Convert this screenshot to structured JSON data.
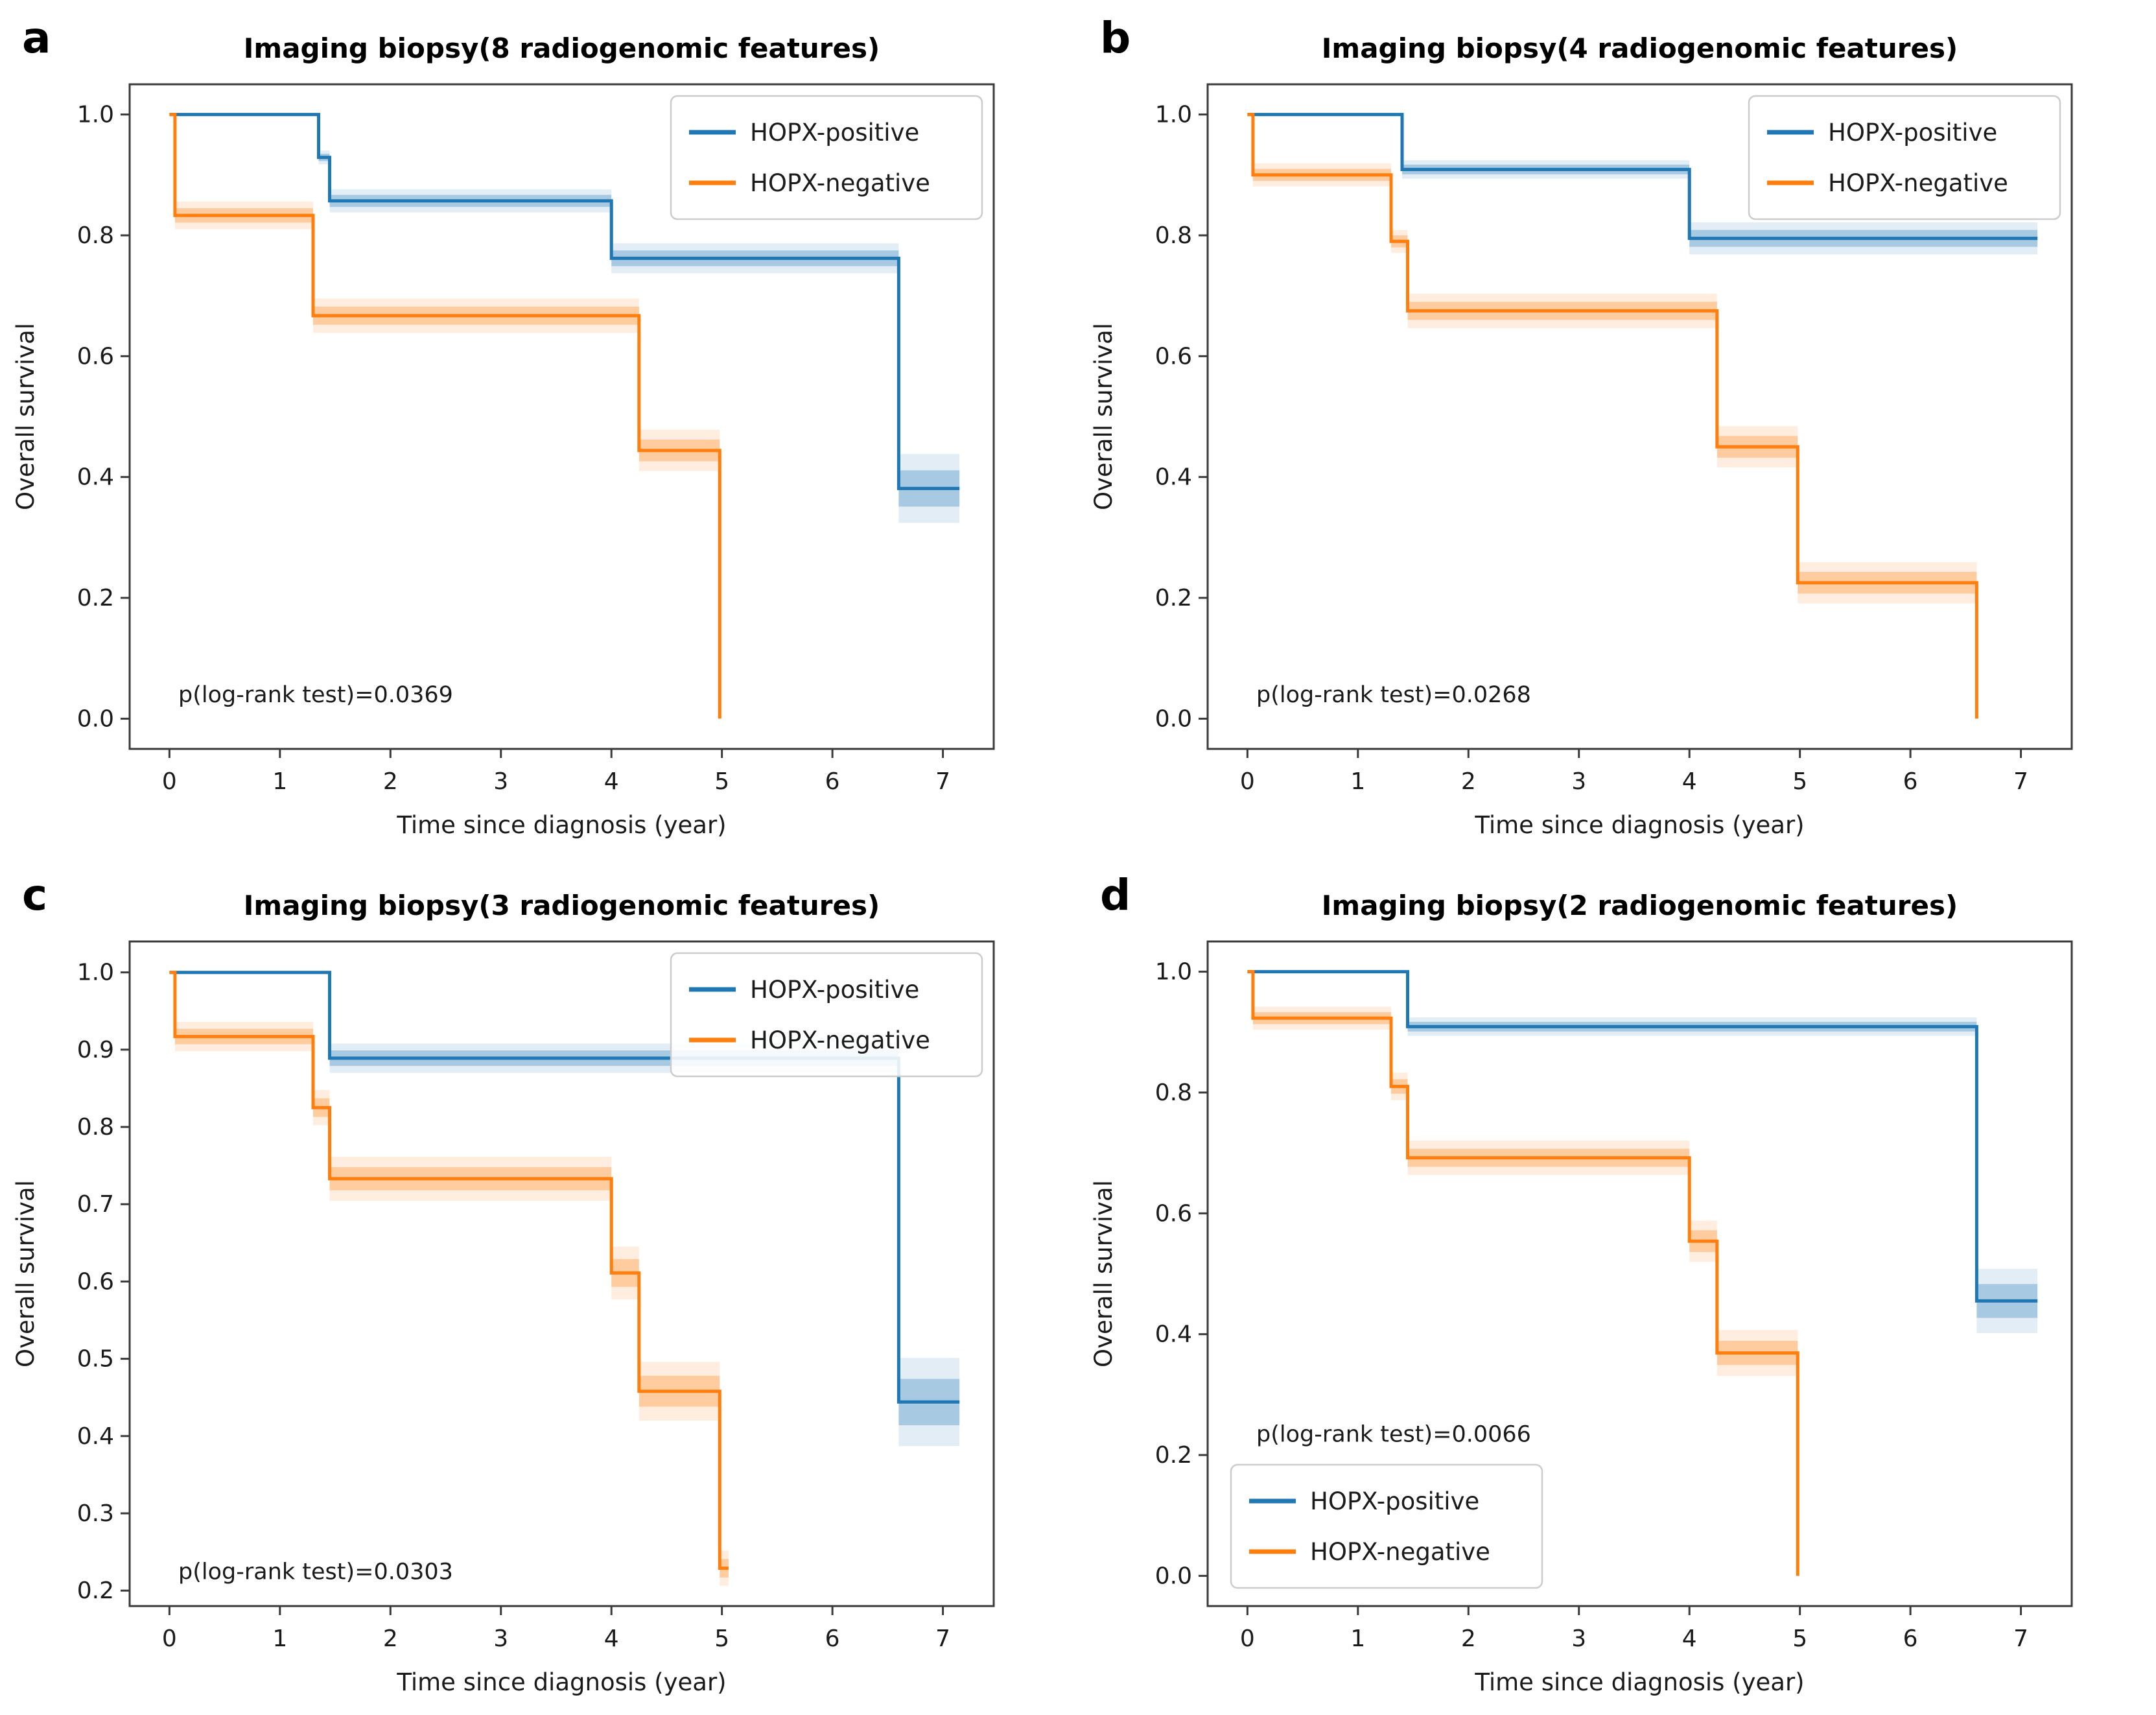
{
  "style": {
    "background": "#ffffff",
    "spine_color": "#3a3a3a",
    "text_color": "#1a1a1a",
    "positive_color": "#1f77b4",
    "negative_color": "#ff7f0e",
    "legend_border": "#cccccc",
    "legend_fill": "#ffffff"
  },
  "chart_data": [
    {
      "type": "line",
      "step": true,
      "panel_label": "a",
      "title": "Imaging biopsy(8 radiogenomic features)",
      "xlabel": "Time since diagnosis (year)",
      "ylabel": "Overall survival",
      "p_label": "p(log-rank test)=0.0369",
      "p_pos": {
        "x": 0.08,
        "y": 0.04
      },
      "xlim": [
        -0.36,
        7.46
      ],
      "ylim": [
        -0.05,
        1.05
      ],
      "xticks": [
        0,
        1,
        2,
        3,
        4,
        5,
        6,
        7
      ],
      "xtick_labels": [
        "0",
        "1",
        "2",
        "3",
        "4",
        "5",
        "6",
        "7"
      ],
      "yticks": [
        0.0,
        0.2,
        0.4,
        0.6,
        0.8,
        1.0
      ],
      "ytick_labels": [
        "0.0",
        "0.2",
        "0.4",
        "0.6",
        "0.8",
        "1.0"
      ],
      "legend_loc": "upper-right",
      "grid": false,
      "series": [
        {
          "name": "HOPX-positive",
          "color": "#1f77b4",
          "steps": [
            [
              0,
              1.0
            ],
            [
              1.35,
              0.929
            ],
            [
              1.45,
              0.857
            ],
            [
              4.0,
              0.762
            ],
            [
              6.6,
              0.381
            ]
          ],
          "end": 7.15,
          "band": [
            0,
            0.006,
            0.01,
            0.013,
            0.03
          ]
        },
        {
          "name": "HOPX-negative",
          "color": "#ff7f0e",
          "steps": [
            [
              0,
              1.0
            ],
            [
              0.05,
              0.833
            ],
            [
              1.3,
              0.667
            ],
            [
              4.25,
              0.444
            ],
            [
              4.98,
              0.0
            ]
          ],
          "end": 4.98,
          "band": [
            0,
            0.012,
            0.015,
            0.018,
            0
          ]
        }
      ]
    },
    {
      "type": "line",
      "step": true,
      "panel_label": "b",
      "title": "Imaging biopsy(4 radiogenomic features)",
      "xlabel": "Time since diagnosis (year)",
      "ylabel": "Overall survival",
      "p_label": "p(log-rank test)=0.0268",
      "p_pos": {
        "x": 0.08,
        "y": 0.04
      },
      "xlim": [
        -0.36,
        7.46
      ],
      "ylim": [
        -0.05,
        1.05
      ],
      "xticks": [
        0,
        1,
        2,
        3,
        4,
        5,
        6,
        7
      ],
      "xtick_labels": [
        "0",
        "1",
        "2",
        "3",
        "4",
        "5",
        "6",
        "7"
      ],
      "yticks": [
        0.0,
        0.2,
        0.4,
        0.6,
        0.8,
        1.0
      ],
      "ytick_labels": [
        "0.0",
        "0.2",
        "0.4",
        "0.6",
        "0.8",
        "1.0"
      ],
      "legend_loc": "upper-right",
      "grid": false,
      "series": [
        {
          "name": "HOPX-positive",
          "color": "#1f77b4",
          "steps": [
            [
              0,
              1.0
            ],
            [
              1.4,
              0.909
            ],
            [
              4.0,
              0.795
            ]
          ],
          "end": 7.15,
          "band": [
            0,
            0.008,
            0.014
          ]
        },
        {
          "name": "HOPX-negative",
          "color": "#ff7f0e",
          "steps": [
            [
              0,
              1.0
            ],
            [
              0.05,
              0.9
            ],
            [
              1.3,
              0.79
            ],
            [
              1.45,
              0.675
            ],
            [
              4.25,
              0.45
            ],
            [
              4.98,
              0.225
            ],
            [
              6.6,
              0.0
            ]
          ],
          "end": 6.6,
          "band": [
            0,
            0.01,
            0.01,
            0.015,
            0.018,
            0.018,
            0
          ]
        }
      ]
    },
    {
      "type": "line",
      "step": true,
      "panel_label": "c",
      "title": "Imaging biopsy(3 radiogenomic features)",
      "xlabel": "Time since diagnosis (year)",
      "ylabel": "Overall survival",
      "p_label": "p(log-rank test)=0.0303",
      "p_pos": {
        "x": 0.08,
        "y": 0.225
      },
      "xlim": [
        -0.36,
        7.46
      ],
      "ylim": [
        0.18,
        1.04
      ],
      "xticks": [
        0,
        1,
        2,
        3,
        4,
        5,
        6,
        7
      ],
      "xtick_labels": [
        "0",
        "1",
        "2",
        "3",
        "4",
        "5",
        "6",
        "7"
      ],
      "yticks": [
        0.2,
        0.3,
        0.4,
        0.5,
        0.6,
        0.7,
        0.8,
        0.9,
        1.0
      ],
      "ytick_labels": [
        "0.2",
        "0.3",
        "0.4",
        "0.5",
        "0.6",
        "0.7",
        "0.8",
        "0.9",
        "1.0"
      ],
      "legend_loc": "upper-right",
      "grid": false,
      "series": [
        {
          "name": "HOPX-positive",
          "color": "#1f77b4",
          "steps": [
            [
              0,
              1.0
            ],
            [
              1.45,
              0.889
            ],
            [
              6.6,
              0.444
            ]
          ],
          "end": 7.15,
          "band": [
            0,
            0.01,
            0.03
          ]
        },
        {
          "name": "HOPX-negative",
          "color": "#ff7f0e",
          "steps": [
            [
              0,
              1.0
            ],
            [
              0.05,
              0.917
            ],
            [
              1.3,
              0.825
            ],
            [
              1.45,
              0.733
            ],
            [
              4.0,
              0.611
            ],
            [
              4.25,
              0.458
            ],
            [
              4.98,
              0.229
            ]
          ],
          "end": 5.06,
          "band": [
            0,
            0.01,
            0.012,
            0.015,
            0.018,
            0.02,
            0.012
          ]
        }
      ]
    },
    {
      "type": "line",
      "step": true,
      "panel_label": "d",
      "title": "Imaging biopsy(2 radiogenomic features)",
      "xlabel": "Time since diagnosis (year)",
      "ylabel": "Overall survival",
      "p_label": "p(log-rank test)=0.0066",
      "p_pos": {
        "x": 0.08,
        "y": 0.235
      },
      "xlim": [
        -0.36,
        7.46
      ],
      "ylim": [
        -0.05,
        1.05
      ],
      "xticks": [
        0,
        1,
        2,
        3,
        4,
        5,
        6,
        7
      ],
      "xtick_labels": [
        "0",
        "1",
        "2",
        "3",
        "4",
        "5",
        "6",
        "7"
      ],
      "yticks": [
        0.0,
        0.2,
        0.4,
        0.6,
        0.8,
        1.0
      ],
      "ytick_labels": [
        "0.0",
        "0.2",
        "0.4",
        "0.6",
        "0.8",
        "1.0"
      ],
      "legend_loc": "lower-left",
      "grid": false,
      "series": [
        {
          "name": "HOPX-positive",
          "color": "#1f77b4",
          "steps": [
            [
              0,
              1.0
            ],
            [
              1.45,
              0.909
            ],
            [
              6.6,
              0.455
            ]
          ],
          "end": 7.15,
          "band": [
            0,
            0.008,
            0.028
          ]
        },
        {
          "name": "HOPX-negative",
          "color": "#ff7f0e",
          "steps": [
            [
              0,
              1.0
            ],
            [
              0.05,
              0.923
            ],
            [
              1.3,
              0.81
            ],
            [
              1.45,
              0.692
            ],
            [
              4.0,
              0.554
            ],
            [
              4.25,
              0.369
            ],
            [
              4.98,
              0.0
            ]
          ],
          "end": 4.98,
          "band": [
            0,
            0.01,
            0.012,
            0.015,
            0.018,
            0.02,
            0
          ]
        }
      ]
    }
  ]
}
